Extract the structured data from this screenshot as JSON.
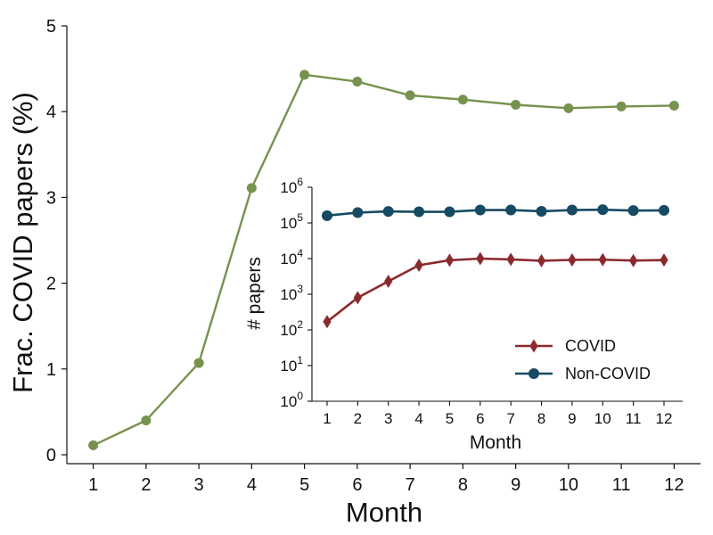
{
  "chart_data": [
    {
      "type": "line",
      "xlabel": "Month",
      "ylabel": "Frac. COVID papers (%)",
      "x": [
        1,
        2,
        3,
        4,
        5,
        6,
        7,
        8,
        9,
        10,
        11,
        12
      ],
      "xlim": [
        0.5,
        12.5
      ],
      "ylim": [
        0,
        5
      ],
      "xticks": [
        "1",
        "2",
        "3",
        "4",
        "5",
        "6",
        "7",
        "8",
        "9",
        "10",
        "11",
        "12"
      ],
      "yticks": [
        "0",
        "1",
        "2",
        "3",
        "4",
        "5"
      ],
      "grid": false,
      "series": [
        {
          "values": [
            0.11,
            0.4,
            1.07,
            3.11,
            4.43,
            4.35,
            4.19,
            4.14,
            4.08,
            4.04,
            4.06,
            4.07
          ],
          "color": "#77924f",
          "marker": "circle"
        }
      ]
    },
    {
      "type": "line",
      "inset": true,
      "xlabel": "Month",
      "ylabel": "# papers",
      "yscale": "log",
      "x": [
        1,
        2,
        3,
        4,
        5,
        6,
        7,
        8,
        9,
        10,
        11,
        12
      ],
      "xlim": [
        0.5,
        12.5
      ],
      "ylim": [
        1,
        1000000
      ],
      "xticks": [
        "1",
        "2",
        "3",
        "4",
        "5",
        "6",
        "7",
        "8",
        "9",
        "10",
        "11",
        "12"
      ],
      "yticks": [
        {
          "base": "10",
          "exp": "0"
        },
        {
          "base": "10",
          "exp": "1"
        },
        {
          "base": "10",
          "exp": "2"
        },
        {
          "base": "10",
          "exp": "3"
        },
        {
          "base": "10",
          "exp": "4"
        },
        {
          "base": "10",
          "exp": "5"
        },
        {
          "base": "10",
          "exp": "6"
        }
      ],
      "grid": false,
      "legend": "bottom-right",
      "series": [
        {
          "name": "COVID",
          "color": "#8b2a2e",
          "marker": "diamond",
          "values": [
            170,
            800,
            2300,
            6500,
            9000,
            10000,
            9500,
            8700,
            9200,
            9300,
            8800,
            9100
          ]
        },
        {
          "name": "Non-COVID",
          "color": "#174a63",
          "marker": "circle",
          "values": [
            160000,
            195000,
            210000,
            205000,
            205000,
            230000,
            230000,
            212000,
            230000,
            235000,
            222000,
            225000
          ]
        }
      ]
    }
  ]
}
